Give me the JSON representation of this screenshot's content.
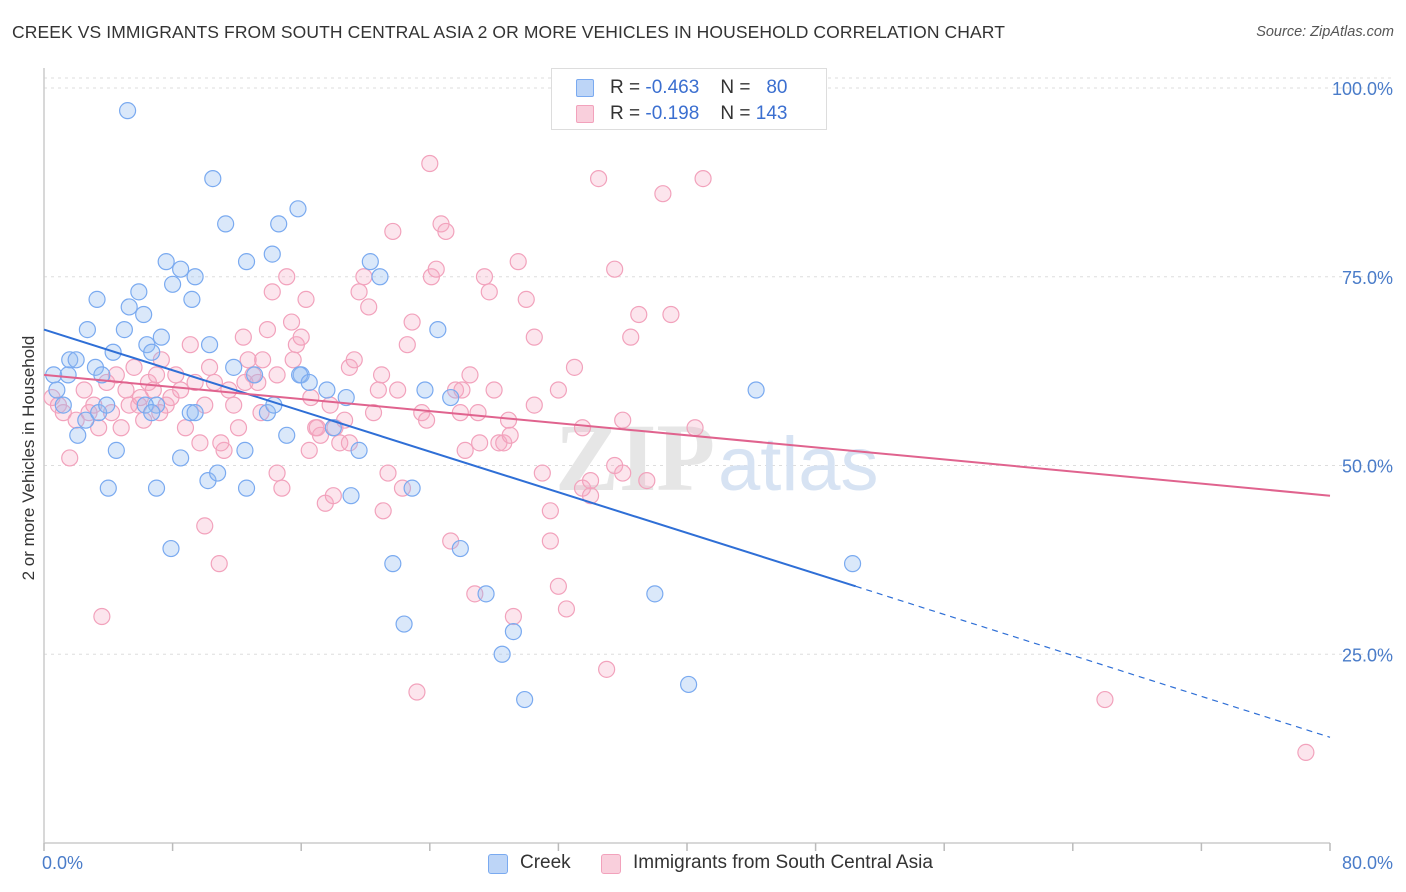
{
  "title": "CREEK VS IMMIGRANTS FROM SOUTH CENTRAL ASIA 2 OR MORE VEHICLES IN HOUSEHOLD CORRELATION CHART",
  "source": "Source: ZipAtlas.com",
  "colors": {
    "creek": "#7aaaf0",
    "creek_line": "#2f6fd6",
    "asia": "#f2a2bc",
    "asia_line": "#e0638e",
    "tick": "#4a7cc9",
    "grid": "#dddddd"
  },
  "legend": {
    "creek": {
      "r_label": "R =",
      "r_value": "-0.463",
      "n_label": "N =",
      "n_value": "80"
    },
    "asia": {
      "r_label": "R =",
      "r_value": "-0.198",
      "n_label": "N =",
      "n_value": "143"
    }
  },
  "chart_data": {
    "type": "scatter",
    "title": "CREEK VS IMMIGRANTS FROM SOUTH CENTRAL ASIA 2 OR MORE VEHICLES IN HOUSEHOLD CORRELATION CHART",
    "xlabel": "",
    "ylabel": "2 or more Vehicles in Household",
    "xlim": [
      0,
      80
    ],
    "ylim": [
      0,
      105
    ],
    "x_tick_labels": [
      "0.0%",
      "80.0%"
    ],
    "y_ticks": [
      25,
      50,
      75,
      100
    ],
    "y_tick_labels": [
      "25.0%",
      "50.0%",
      "75.0%",
      "100.0%"
    ],
    "grid": true,
    "legend_position": "top-center",
    "series": [
      {
        "name": "Creek",
        "color": "#7aaaf0",
        "trend": {
          "x0": 0,
          "y0": 68,
          "x1": 50.5,
          "y1": 34,
          "dashed_to_x": 80,
          "dashed_to_y": 14
        },
        "points": [
          [
            0.6,
            62
          ],
          [
            0.8,
            60
          ],
          [
            1.5,
            62
          ],
          [
            1.6,
            64
          ],
          [
            2.0,
            64
          ],
          [
            3.2,
            63
          ],
          [
            2.7,
            68
          ],
          [
            3.3,
            72
          ],
          [
            3.6,
            62
          ],
          [
            4.3,
            65
          ],
          [
            4.5,
            52
          ],
          [
            5.0,
            68
          ],
          [
            5.3,
            71
          ],
          [
            5.9,
            73
          ],
          [
            6.2,
            70
          ],
          [
            4.0,
            47
          ],
          [
            6.4,
            66
          ],
          [
            6.7,
            65
          ],
          [
            7.3,
            67
          ],
          [
            7.6,
            77
          ],
          [
            7.0,
            58
          ],
          [
            8.0,
            74
          ],
          [
            8.5,
            76
          ],
          [
            9.2,
            72
          ],
          [
            9.4,
            75
          ],
          [
            10.3,
            66
          ],
          [
            10.5,
            88
          ],
          [
            11.3,
            82
          ],
          [
            12.6,
            77
          ],
          [
            14.6,
            82
          ],
          [
            14.2,
            78
          ],
          [
            15.8,
            84
          ],
          [
            16.0,
            62
          ],
          [
            17.6,
            60
          ],
          [
            18.0,
            55
          ],
          [
            18.8,
            59
          ],
          [
            20.3,
            77
          ],
          [
            20.9,
            75
          ],
          [
            21.7,
            37
          ],
          [
            22.4,
            29
          ],
          [
            22.9,
            47
          ],
          [
            23.7,
            60
          ],
          [
            24.5,
            68
          ],
          [
            25.3,
            59
          ],
          [
            25.9,
            39
          ],
          [
            27.5,
            33
          ],
          [
            28.5,
            25
          ],
          [
            29.2,
            28
          ],
          [
            29.9,
            19
          ],
          [
            38.0,
            33
          ],
          [
            40.1,
            21
          ],
          [
            44.3,
            60
          ],
          [
            50.3,
            37
          ],
          [
            5.2,
            97
          ],
          [
            7.0,
            47
          ],
          [
            7.9,
            39
          ],
          [
            8.5,
            51
          ],
          [
            10.2,
            48
          ],
          [
            10.8,
            49
          ],
          [
            12.6,
            47
          ],
          [
            12.5,
            52
          ],
          [
            13.1,
            62
          ],
          [
            13.9,
            57
          ],
          [
            14.3,
            58
          ],
          [
            15.1,
            54
          ],
          [
            15.9,
            62
          ],
          [
            16.5,
            61
          ],
          [
            19.1,
            46
          ],
          [
            19.6,
            52
          ],
          [
            11.8,
            63
          ],
          [
            9.1,
            57
          ],
          [
            1.2,
            58
          ],
          [
            2.6,
            56
          ],
          [
            3.4,
            57
          ],
          [
            3.9,
            58
          ],
          [
            6.3,
            58
          ],
          [
            6.7,
            57
          ],
          [
            9.4,
            57
          ],
          [
            2.1,
            54
          ]
        ]
      },
      {
        "name": "Immigrants from South Central Asia",
        "color": "#f2a2bc",
        "trend": {
          "x0": 0,
          "y0": 62,
          "x1": 80,
          "y1": 46
        },
        "points": [
          [
            0.5,
            59
          ],
          [
            0.9,
            58
          ],
          [
            1.2,
            57
          ],
          [
            1.6,
            51
          ],
          [
            2.0,
            56
          ],
          [
            2.5,
            60
          ],
          [
            2.8,
            57
          ],
          [
            3.1,
            58
          ],
          [
            3.4,
            55
          ],
          [
            3.6,
            30
          ],
          [
            3.9,
            61
          ],
          [
            4.2,
            57
          ],
          [
            4.5,
            62
          ],
          [
            4.8,
            55
          ],
          [
            5.1,
            60
          ],
          [
            5.3,
            58
          ],
          [
            5.6,
            63
          ],
          [
            5.9,
            58
          ],
          [
            6.2,
            56
          ],
          [
            6.5,
            61
          ],
          [
            6.8,
            60
          ],
          [
            7.0,
            62
          ],
          [
            7.3,
            64
          ],
          [
            7.6,
            58
          ],
          [
            7.9,
            59
          ],
          [
            8.2,
            62
          ],
          [
            8.5,
            60
          ],
          [
            8.8,
            55
          ],
          [
            9.1,
            66
          ],
          [
            9.4,
            61
          ],
          [
            9.7,
            53
          ],
          [
            10.0,
            42
          ],
          [
            10.3,
            63
          ],
          [
            10.6,
            61
          ],
          [
            10.9,
            37
          ],
          [
            11.2,
            52
          ],
          [
            11.5,
            60
          ],
          [
            11.8,
            58
          ],
          [
            12.1,
            55
          ],
          [
            12.4,
            67
          ],
          [
            12.7,
            64
          ],
          [
            13.0,
            62
          ],
          [
            13.3,
            61
          ],
          [
            13.6,
            64
          ],
          [
            13.9,
            68
          ],
          [
            14.2,
            73
          ],
          [
            14.5,
            62
          ],
          [
            14.8,
            47
          ],
          [
            15.1,
            75
          ],
          [
            15.4,
            69
          ],
          [
            15.7,
            66
          ],
          [
            16.0,
            67
          ],
          [
            16.3,
            72
          ],
          [
            16.6,
            59
          ],
          [
            16.9,
            55
          ],
          [
            17.2,
            54
          ],
          [
            17.5,
            45
          ],
          [
            17.8,
            58
          ],
          [
            18.1,
            55
          ],
          [
            18.4,
            53
          ],
          [
            18.7,
            56
          ],
          [
            19.0,
            63
          ],
          [
            19.3,
            64
          ],
          [
            19.6,
            73
          ],
          [
            19.9,
            75
          ],
          [
            20.2,
            71
          ],
          [
            20.5,
            57
          ],
          [
            20.8,
            60
          ],
          [
            21.1,
            44
          ],
          [
            21.4,
            49
          ],
          [
            21.7,
            81
          ],
          [
            22.0,
            60
          ],
          [
            22.3,
            47
          ],
          [
            22.6,
            66
          ],
          [
            22.9,
            69
          ],
          [
            23.2,
            20
          ],
          [
            23.5,
            57
          ],
          [
            23.8,
            56
          ],
          [
            24.1,
            75
          ],
          [
            24.4,
            76
          ],
          [
            24.7,
            82
          ],
          [
            25.0,
            81
          ],
          [
            25.3,
            40
          ],
          [
            25.6,
            60
          ],
          [
            25.9,
            57
          ],
          [
            26.2,
            52
          ],
          [
            26.5,
            62
          ],
          [
            26.8,
            33
          ],
          [
            27.1,
            53
          ],
          [
            27.4,
            75
          ],
          [
            27.7,
            73
          ],
          [
            28.0,
            60
          ],
          [
            28.3,
            53
          ],
          [
            28.6,
            53
          ],
          [
            28.9,
            56
          ],
          [
            29.2,
            30
          ],
          [
            29.5,
            77
          ],
          [
            30.0,
            72
          ],
          [
            30.5,
            67
          ],
          [
            31.0,
            49
          ],
          [
            31.5,
            44
          ],
          [
            32.0,
            34
          ],
          [
            32.5,
            31
          ],
          [
            33.0,
            63
          ],
          [
            33.5,
            47
          ],
          [
            34.0,
            46
          ],
          [
            34.5,
            88
          ],
          [
            35.0,
            23
          ],
          [
            35.5,
            76
          ],
          [
            36.0,
            56
          ],
          [
            36.5,
            67
          ],
          [
            37.0,
            70
          ],
          [
            38.5,
            86
          ],
          [
            39.0,
            70
          ],
          [
            40.5,
            55
          ],
          [
            41.0,
            88
          ],
          [
            18.0,
            46
          ],
          [
            19.0,
            53
          ],
          [
            21.0,
            62
          ],
          [
            24.0,
            90
          ],
          [
            26.0,
            60
          ],
          [
            27.0,
            57
          ],
          [
            29.0,
            54
          ],
          [
            30.5,
            58
          ],
          [
            31.5,
            40
          ],
          [
            32.0,
            60
          ],
          [
            33.5,
            55
          ],
          [
            34.0,
            48
          ],
          [
            35.5,
            50
          ],
          [
            36.0,
            49
          ],
          [
            37.5,
            48
          ],
          [
            10.0,
            58
          ],
          [
            11.0,
            53
          ],
          [
            12.5,
            61
          ],
          [
            13.5,
            57
          ],
          [
            14.5,
            49
          ],
          [
            15.5,
            64
          ],
          [
            16.5,
            52
          ],
          [
            17.0,
            55
          ],
          [
            66.0,
            19
          ],
          [
            78.5,
            12
          ],
          [
            6.0,
            59
          ],
          [
            7.2,
            57
          ]
        ]
      }
    ]
  },
  "bottom_legend": {
    "creek": "Creek",
    "asia": "Immigrants from South Central Asia"
  },
  "watermark": {
    "zip": "ZIP",
    "atlas": "atlas"
  }
}
